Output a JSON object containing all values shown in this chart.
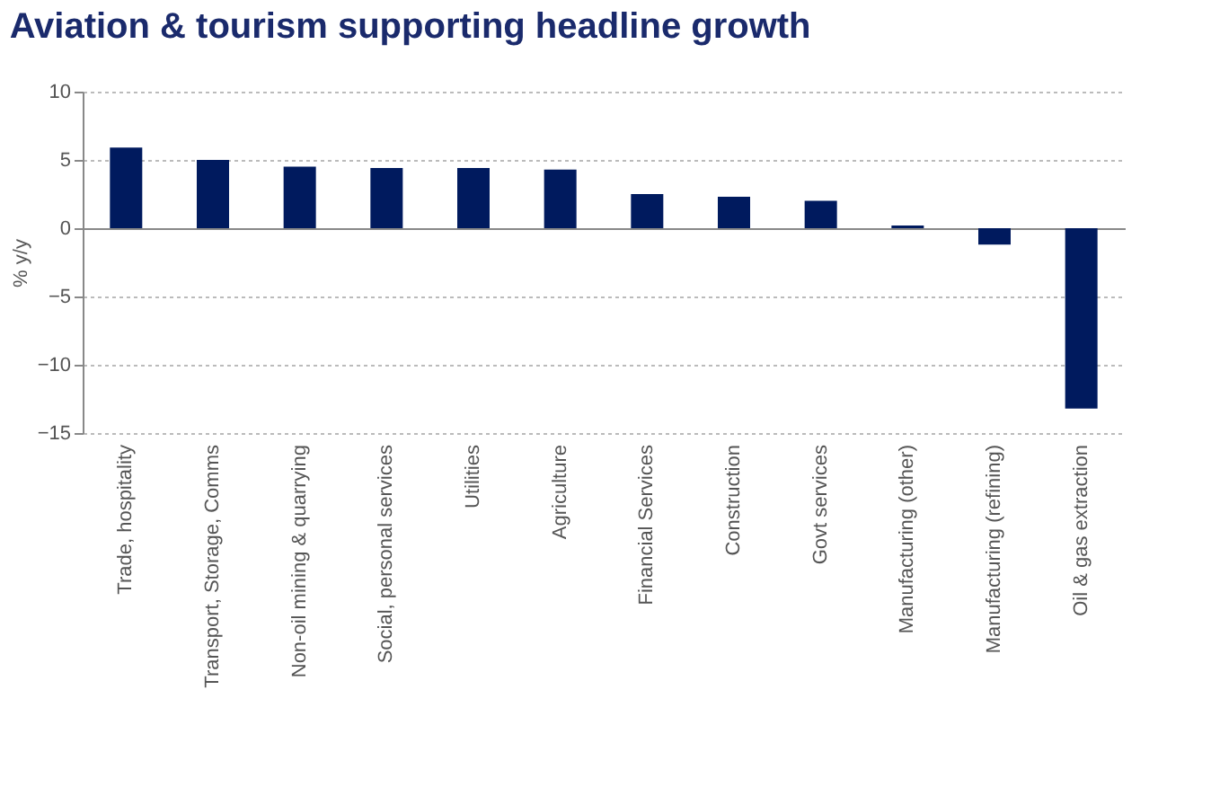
{
  "chart_data": {
    "type": "bar",
    "title": "Aviation & tourism supporting headline growth",
    "ylabel": "% y/y",
    "categories": [
      "Trade, hospitality",
      "Transport, Storage, Comms",
      "Non-oil mining & quarrying",
      "Social, personal services",
      "Utilities",
      "Agriculture",
      "Financial Services",
      "Construction",
      "Govt services",
      "Manufacturing (other)",
      "Manufacturing (refining)",
      "Oil & gas extraction"
    ],
    "values": [
      5.9,
      5.0,
      4.5,
      4.4,
      4.4,
      4.3,
      2.5,
      2.3,
      2.0,
      0.2,
      -1.2,
      -13.2
    ],
    "color": "#001a5e",
    "ylim": [
      -15,
      10
    ],
    "yticks": [
      -15,
      -10,
      -5,
      0,
      5,
      10
    ],
    "grid": "y"
  }
}
